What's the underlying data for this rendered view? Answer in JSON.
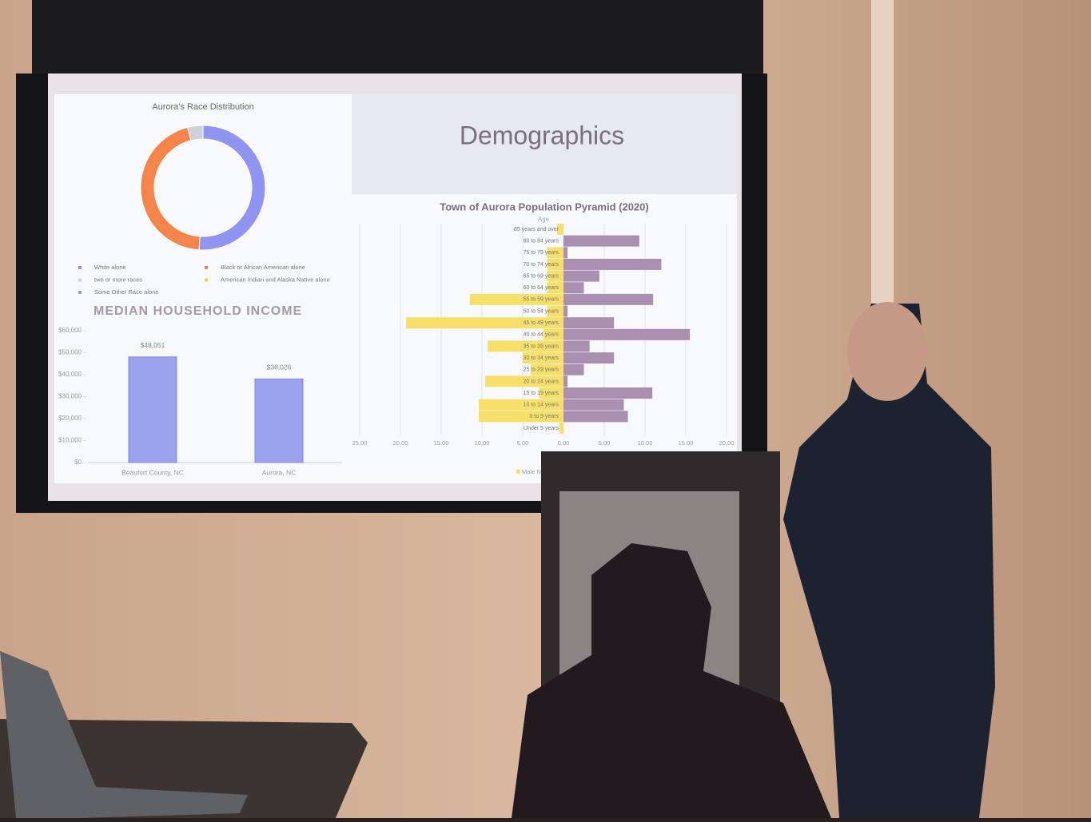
{
  "slide": {
    "title": "Demographics"
  },
  "chart_data": [
    {
      "type": "donut",
      "title": "Aurora's Race Distribution",
      "categories": [
        "White alone",
        "Black or African American alone",
        "two or more races",
        "American Indian and Alaska Native alone",
        "Some Other Race alone"
      ],
      "values": [
        51,
        45,
        4,
        0,
        0
      ],
      "colors": [
        "#8f95f0",
        "#f5844a",
        "#cfcfd6",
        "#f2cf45",
        "#a0a0a8"
      ]
    },
    {
      "type": "bar",
      "title": "MEDIAN HOUSEHOLD INCOME",
      "categories": [
        "Beaufort County, NC",
        "Aurora, NC"
      ],
      "values": [
        48051,
        38026
      ],
      "value_labels": [
        "$48,051",
        "$38,026"
      ],
      "color": "#9aa3ec",
      "ylim": [
        0,
        60000
      ],
      "yticks": [
        {
          "value": 0,
          "label": "$0"
        },
        {
          "value": 10000,
          "label": "$10,000"
        },
        {
          "value": 20000,
          "label": "$20,000"
        },
        {
          "value": 30000,
          "label": "$30,000"
        },
        {
          "value": 40000,
          "label": "$40,000"
        },
        {
          "value": 50000,
          "label": "$50,000"
        },
        {
          "value": 60000,
          "label": "$60,000"
        }
      ]
    },
    {
      "type": "pyramid",
      "title": "Town of Aurora Population Pyramid (2020)",
      "y_label": "Age",
      "categories": [
        "Under 5 years",
        "5 to 9 years",
        "10 to 14 years",
        "15 to 19 years",
        "20 to 24 years",
        "25 to 29 years",
        "30 to 34 years",
        "35 to 39 years",
        "40 to 44 years",
        "45 to 49 years",
        "50 to 54 years",
        "55 to 59 years",
        "60 to 64 years",
        "65 to 69 years",
        "70 to 74 years",
        "75 to 79 years",
        "80 to 84 years",
        "85 years and over"
      ],
      "series": [
        {
          "name": "Male N",
          "color": "#f7e06a",
          "values": [
            -0.5,
            -10.4,
            -10.4,
            -3,
            -9.6,
            -4,
            -5,
            -9.3,
            -2.5,
            -19.3,
            -2,
            -11.5,
            -2,
            -2,
            -2,
            -2,
            0,
            -0.8
          ]
        },
        {
          "color": "#a98fb0",
          "values": [
            0,
            7.9,
            7.4,
            10.9,
            0.5,
            2.5,
            6.2,
            3.2,
            15.5,
            6.2,
            0.5,
            11,
            2.5,
            4.4,
            12,
            0.5,
            9.3,
            0
          ]
        }
      ],
      "xlim": [
        -25,
        20
      ],
      "xticks": [
        {
          "value": -25,
          "label": "25.00"
        },
        {
          "value": -20,
          "label": "20.00"
        },
        {
          "value": -15,
          "label": "15.00"
        },
        {
          "value": -10,
          "label": "10.00"
        },
        {
          "value": -5,
          "label": "5.00"
        },
        {
          "value": 0,
          "label": "0.00"
        },
        {
          "value": 5,
          "label": "5.00"
        },
        {
          "value": 10,
          "label": "10.00"
        },
        {
          "value": 15,
          "label": "15.00"
        },
        {
          "value": 20,
          "label": "20.00"
        }
      ],
      "grid": true
    }
  ]
}
